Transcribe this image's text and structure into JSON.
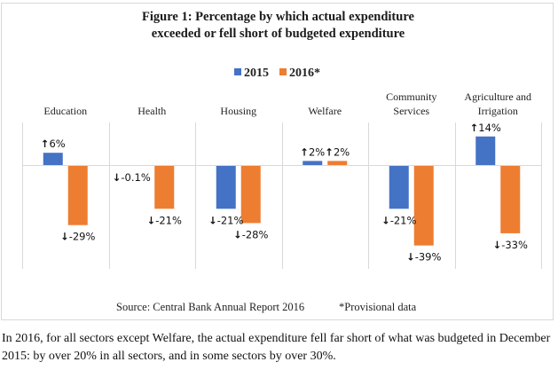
{
  "chart_data": {
    "type": "bar",
    "title_lines": [
      "Figure 1: Percentage by which actual expenditure",
      "exceeded or fell short of budgeted expenditure"
    ],
    "categories": [
      [
        "Education"
      ],
      [
        "Health"
      ],
      [
        "Housing"
      ],
      [
        "Welfare"
      ],
      [
        "Community",
        "Services"
      ],
      [
        "Agriculture and",
        "Irrigation"
      ]
    ],
    "series": [
      {
        "name": "2015",
        "color": "#4472C4",
        "values": [
          6,
          -0.1,
          -21,
          2,
          -21,
          14
        ],
        "labels": [
          "6%",
          "-0.1%",
          "-21%",
          "2%",
          "-21%",
          "14%"
        ]
      },
      {
        "name": "2016*",
        "color": "#ED7D31",
        "values": [
          -29,
          -21,
          -28,
          2,
          -39,
          -33
        ],
        "labels": [
          "-29%",
          "-21%",
          "-28%",
          "2%",
          "-39%",
          "-33%"
        ]
      }
    ],
    "xlabel": "",
    "ylabel": "",
    "ylim": [
      -50,
      20
    ],
    "grid": "vertical category separators",
    "legend": "top-center",
    "up_arrow": "↑",
    "down_arrow": "↓"
  },
  "source_note": "Source: Central Bank Annual Report 2016",
  "provisional_note": "*Provisional data",
  "caption": "In 2016, for all sectors except Welfare, the actual expenditure fell far short of what was budgeted in December 2015: by over 20% in all sectors, and in some sectors by over 30%."
}
